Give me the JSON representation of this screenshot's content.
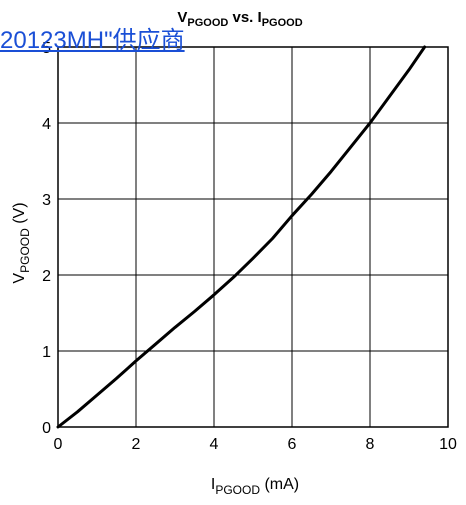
{
  "chart_data": {
    "type": "line",
    "title": {
      "main": "V",
      "main_sub": "PGOOD",
      "mid": " vs. I",
      "end_sub": "PGOOD"
    },
    "xlabel": {
      "main": "I",
      "sub": "PGOOD",
      "unit": " (mA)"
    },
    "ylabel": {
      "main": "V",
      "sub": "PGOOD",
      "unit": " (V)"
    },
    "xlim": [
      0,
      10
    ],
    "ylim": [
      0,
      5
    ],
    "xticks": [
      0,
      2,
      4,
      6,
      8,
      10
    ],
    "yticks": [
      0,
      1,
      2,
      3,
      4,
      5
    ],
    "grid": true,
    "series": [
      {
        "x": [
          0,
          0.5,
          1,
          1.5,
          2,
          2.5,
          3,
          3.5,
          4,
          4.5,
          5,
          5.5,
          6,
          6.5,
          7,
          7.5,
          8,
          8.5,
          9,
          9.4
        ],
        "y": [
          0,
          0.2,
          0.42,
          0.64,
          0.87,
          1.09,
          1.31,
          1.52,
          1.74,
          1.97,
          2.22,
          2.48,
          2.78,
          3.06,
          3.36,
          3.68,
          4.0,
          4.35,
          4.7,
          5.0
        ]
      }
    ]
  },
  "overlay": {
    "watermark_text": "20123MH\"供应商"
  }
}
